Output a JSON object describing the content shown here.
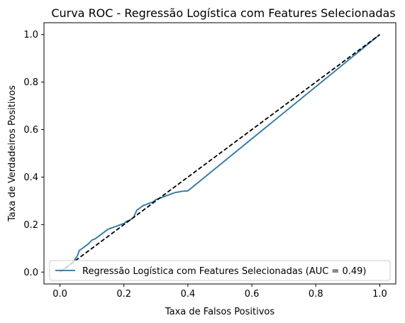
{
  "chart_data": {
    "type": "line",
    "title": "Curva ROC - Regressão Logística com Features Selecionadas",
    "xlabel": "Taxa de Falsos Positivos",
    "ylabel": "Taxa de Verdadeiros Positivos",
    "xlim": [
      -0.05,
      1.05
    ],
    "ylim": [
      -0.05,
      1.05
    ],
    "xticks": [
      0.0,
      0.2,
      0.4,
      0.6,
      0.8,
      1.0
    ],
    "yticks": [
      0.0,
      0.2,
      0.4,
      0.6,
      0.8,
      1.0
    ],
    "xtick_labels": [
      "0.0",
      "0.2",
      "0.4",
      "0.6",
      "0.8",
      "1.0"
    ],
    "ytick_labels": [
      "0.0",
      "0.2",
      "0.4",
      "0.6",
      "0.8",
      "1.0"
    ],
    "grid": false,
    "legend_position": "lower right",
    "series": [
      {
        "name": "Regressão Logística com Features Selecionadas (AUC = 0.49)",
        "color": "#1f77b4",
        "style": "solid",
        "x": [
          0.0,
          0.01,
          0.02,
          0.03,
          0.04,
          0.045,
          0.05,
          0.055,
          0.06,
          0.07,
          0.08,
          0.09,
          0.1,
          0.11,
          0.12,
          0.13,
          0.14,
          0.15,
          0.16,
          0.17,
          0.18,
          0.19,
          0.2,
          0.21,
          0.22,
          0.23,
          0.24,
          0.245,
          0.25,
          0.26,
          0.27,
          0.28,
          0.29,
          0.3,
          0.31,
          0.32,
          0.33,
          0.34,
          0.35,
          0.36,
          0.37,
          0.38,
          0.39,
          0.4,
          1.0
        ],
        "y": [
          0.0,
          0.01,
          0.02,
          0.03,
          0.04,
          0.05,
          0.06,
          0.07,
          0.09,
          0.1,
          0.11,
          0.12,
          0.135,
          0.14,
          0.15,
          0.16,
          0.17,
          0.18,
          0.185,
          0.19,
          0.195,
          0.2,
          0.205,
          0.215,
          0.22,
          0.23,
          0.26,
          0.265,
          0.27,
          0.28,
          0.285,
          0.29,
          0.295,
          0.305,
          0.31,
          0.315,
          0.32,
          0.325,
          0.33,
          0.335,
          0.337,
          0.34,
          0.341,
          0.342,
          1.0
        ]
      },
      {
        "name": "",
        "color": "#000000",
        "style": "dashed",
        "x": [
          0.0,
          1.0
        ],
        "y": [
          0.0,
          1.0
        ]
      }
    ]
  }
}
